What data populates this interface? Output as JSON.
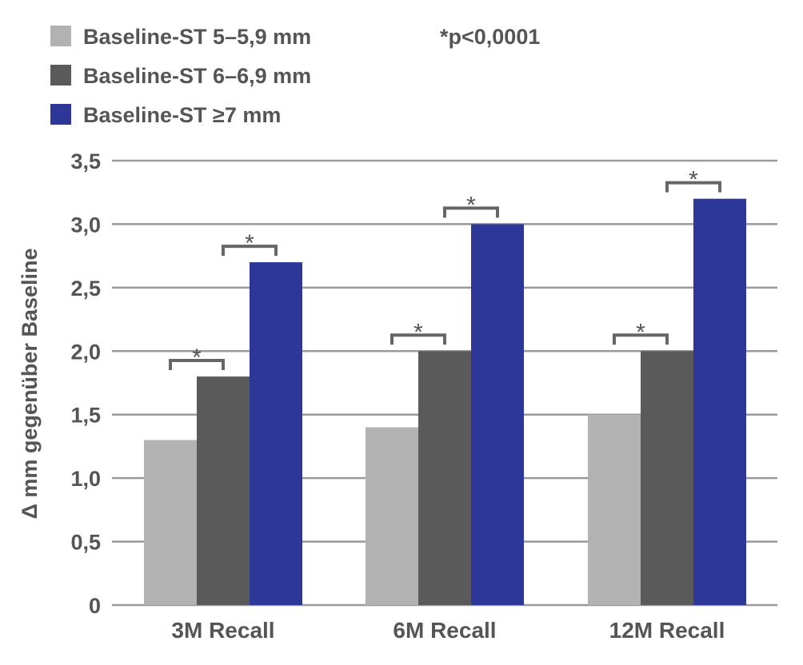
{
  "chart_data": {
    "type": "bar",
    "categories": [
      "3M Recall",
      "6M Recall",
      "12M Recall"
    ],
    "series": [
      {
        "name": "Baseline-ST 5–5,9 mm",
        "color": "#b2b2b2",
        "values": [
          1.3,
          1.4,
          1.5
        ]
      },
      {
        "name": "Baseline-ST 6–6,9 mm",
        "color": "#5a5a5a",
        "values": [
          1.8,
          2.0,
          2.0
        ]
      },
      {
        "name": "Baseline-ST ≥7 mm",
        "color": "#2c3797",
        "values": [
          2.7,
          3.0,
          3.2
        ]
      }
    ],
    "ylabel": "Δ mm gegenüber Baseline",
    "ylim": [
      0,
      3.5
    ],
    "yticks": [
      0,
      0.5,
      1.0,
      1.5,
      2.0,
      2.5,
      3.0,
      3.5
    ],
    "ytick_labels": [
      "0",
      "0,5",
      "1,0",
      "1,5",
      "2,0",
      "2,5",
      "3,0",
      "3,5"
    ],
    "grid": true,
    "legend_position": "top-left",
    "annotation": "*p<0,0001",
    "significance_marker": "*",
    "significance_pairs": [
      [
        1,
        2
      ],
      [
        0,
        1
      ]
    ]
  }
}
